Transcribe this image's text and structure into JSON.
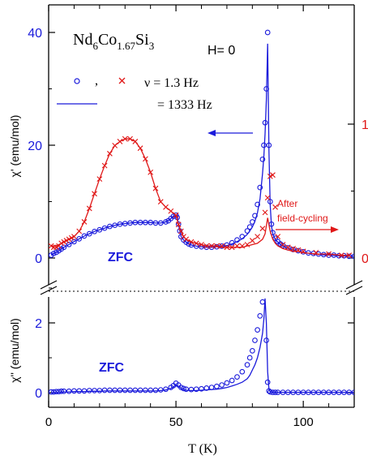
{
  "colors": {
    "blue": "#1a1adb",
    "red": "#e01818",
    "axis": "#000000"
  },
  "labels": {
    "compound": {
      "base": "Nd",
      "sub1": "6",
      "mid1": "Co",
      "sub2": "1.67",
      "mid2": "Si",
      "sub3": "3"
    },
    "field": "H= 0",
    "freq_low": "ν = 1.3 Hz",
    "freq_high": "= 1333 Hz",
    "comma": ",",
    "after_line1": "After",
    "after_line2": "field-cycling",
    "zfc_top": "ZFC",
    "zfc_bottom": "ZFC"
  },
  "chart_data": [
    {
      "type": "scatter",
      "panel": "top",
      "ylabel": "χ' (emu/mol)",
      "xlim": [
        0,
        120
      ],
      "ylim": [
        0,
        42
      ],
      "yticks": [
        0,
        20,
        40
      ],
      "y2ticks": [
        0,
        1
      ],
      "y2_color": "red",
      "series": [
        {
          "name": "ν = 1.3 Hz",
          "style": "open-circle",
          "color": "blue",
          "x": [
            1,
            2,
            3,
            4,
            5,
            6,
            8,
            10,
            12,
            14,
            16,
            18,
            20,
            22,
            24,
            26,
            28,
            30,
            32,
            34,
            36,
            38,
            40,
            42,
            44,
            46,
            47,
            48,
            49,
            50,
            50.5,
            51,
            51.5,
            52,
            53,
            54,
            55,
            56,
            58,
            60,
            62,
            64,
            66,
            68,
            70,
            72,
            74,
            76,
            78,
            79,
            80,
            81,
            82,
            83,
            84,
            84.5,
            85,
            85.5,
            86,
            86.5,
            87,
            87.5,
            88,
            89,
            90,
            91,
            92,
            94,
            96,
            98,
            100,
            102,
            104,
            106,
            108,
            110,
            112,
            114,
            116,
            118,
            120
          ],
          "y": [
            0.5,
            0.8,
            1.0,
            1.3,
            1.6,
            1.9,
            2.4,
            2.9,
            3.4,
            3.9,
            4.3,
            4.7,
            5.0,
            5.3,
            5.6,
            5.8,
            6.0,
            6.1,
            6.2,
            6.3,
            6.3,
            6.3,
            6.3,
            6.2,
            6.2,
            6.4,
            6.6,
            7.0,
            7.4,
            7.6,
            7.2,
            6.0,
            4.8,
            3.8,
            3.2,
            2.8,
            2.5,
            2.3,
            2.1,
            2.0,
            1.9,
            1.9,
            2.0,
            2.1,
            2.3,
            2.7,
            3.2,
            3.8,
            4.8,
            5.5,
            6.4,
            7.5,
            9.5,
            12.5,
            17.5,
            20,
            24,
            30,
            40,
            20,
            10,
            6,
            4.5,
            3.5,
            2.9,
            2.5,
            2.2,
            1.8,
            1.5,
            1.3,
            1.1,
            0.9,
            0.8,
            0.7,
            0.6,
            0.5,
            0.5,
            0.4,
            0.4,
            0.3,
            0.3
          ]
        },
        {
          "name": "1333 Hz",
          "style": "line",
          "color": "blue",
          "x": [
            1,
            2,
            3,
            4,
            5,
            6,
            8,
            10,
            12,
            14,
            16,
            18,
            20,
            22,
            24,
            26,
            28,
            30,
            32,
            34,
            36,
            38,
            40,
            42,
            44,
            46,
            47,
            48,
            49,
            50,
            50.5,
            51,
            51.5,
            52,
            53,
            54,
            55,
            56,
            58,
            60,
            62,
            64,
            66,
            68,
            70,
            72,
            74,
            76,
            78,
            79,
            80,
            81,
            82,
            83,
            84,
            84.5,
            85,
            85.5,
            86,
            86.5,
            87,
            87.5,
            88,
            89,
            90,
            91,
            92,
            94,
            96,
            98,
            100,
            102,
            104,
            106,
            108,
            110,
            112,
            114,
            116,
            118,
            120
          ],
          "y": [
            0.5,
            0.8,
            1.0,
            1.3,
            1.6,
            1.9,
            2.4,
            2.9,
            3.4,
            3.9,
            4.3,
            4.7,
            5.0,
            5.3,
            5.6,
            5.8,
            6.0,
            6.1,
            6.2,
            6.3,
            6.3,
            6.3,
            6.3,
            6.2,
            6.2,
            6.4,
            6.6,
            7.0,
            7.4,
            7.6,
            7.2,
            6.0,
            4.8,
            3.8,
            3.2,
            2.8,
            2.5,
            2.3,
            2.1,
            2.0,
            1.9,
            1.9,
            2.0,
            2.1,
            2.2,
            2.5,
            2.9,
            3.4,
            4.2,
            4.8,
            5.5,
            6.5,
            8.0,
            10.5,
            15,
            18,
            22,
            28,
            38,
            19,
            9.5,
            5.7,
            4.3,
            3.3,
            2.8,
            2.4,
            2.1,
            1.7,
            1.4,
            1.2,
            1.0,
            0.85,
            0.75,
            0.65,
            0.55,
            0.5,
            0.45,
            0.4,
            0.35,
            0.3,
            0.3
          ]
        },
        {
          "name": "ν = 1.3 Hz",
          "style": "cross",
          "color": "red",
          "axis": "right",
          "x": [
            1,
            2,
            3,
            4,
            5,
            6,
            7,
            8,
            9,
            10,
            12,
            14,
            16,
            18,
            20,
            22,
            24,
            26,
            28,
            30,
            32,
            34,
            36,
            38,
            40,
            42,
            44,
            46,
            48,
            50,
            51,
            52,
            53,
            54,
            56,
            58,
            60,
            62,
            64,
            66,
            68,
            70,
            72,
            74,
            76,
            78,
            80,
            82,
            84,
            85,
            86,
            87,
            88,
            89,
            90,
            92,
            94,
            96,
            98,
            100,
            105,
            110,
            115,
            118
          ],
          "y": [
            0.09,
            0.08,
            0.08,
            0.09,
            0.11,
            0.12,
            0.13,
            0.14,
            0.15,
            0.16,
            0.2,
            0.27,
            0.37,
            0.48,
            0.59,
            0.69,
            0.78,
            0.84,
            0.87,
            0.89,
            0.89,
            0.87,
            0.82,
            0.74,
            0.64,
            0.52,
            0.42,
            0.38,
            0.35,
            0.32,
            0.25,
            0.2,
            0.16,
            0.14,
            0.12,
            0.11,
            0.1,
            0.09,
            0.09,
            0.09,
            0.09,
            0.08,
            0.08,
            0.09,
            0.09,
            0.1,
            0.13,
            0.16,
            0.22,
            0.34,
            0.45,
            0.61,
            0.62,
            0.38,
            0.16,
            0.1,
            0.08,
            0.07,
            0.06,
            0.05,
            0.04,
            0.03,
            0.02,
            0.02
          ]
        },
        {
          "name": "1333 Hz",
          "style": "line",
          "color": "red",
          "axis": "right",
          "x": [
            1,
            2,
            3,
            4,
            5,
            6,
            8,
            10,
            12,
            14,
            16,
            18,
            20,
            22,
            24,
            26,
            28,
            30,
            32,
            34,
            36,
            38,
            40,
            42,
            44,
            46,
            48,
            50,
            51,
            52,
            53,
            54,
            56,
            58,
            60,
            62,
            64,
            66,
            68,
            70,
            72,
            74,
            76,
            78,
            80,
            82,
            84,
            85,
            86,
            87,
            88,
            89,
            90,
            92,
            94,
            96,
            98,
            100,
            105,
            110,
            115,
            118
          ],
          "y": [
            0.09,
            0.09,
            0.09,
            0.1,
            0.11,
            0.12,
            0.14,
            0.16,
            0.2,
            0.27,
            0.37,
            0.48,
            0.59,
            0.69,
            0.78,
            0.84,
            0.87,
            0.89,
            0.89,
            0.87,
            0.82,
            0.74,
            0.64,
            0.52,
            0.42,
            0.38,
            0.35,
            0.32,
            0.25,
            0.2,
            0.16,
            0.14,
            0.12,
            0.11,
            0.1,
            0.09,
            0.09,
            0.09,
            0.08,
            0.08,
            0.08,
            0.08,
            0.08,
            0.09,
            0.1,
            0.11,
            0.14,
            0.18,
            0.3,
            0.2,
            0.14,
            0.11,
            0.09,
            0.07,
            0.06,
            0.05,
            0.05,
            0.04,
            0.03,
            0.03,
            0.02,
            0.02
          ]
        }
      ]
    },
    {
      "type": "scatter",
      "panel": "bottom",
      "xlabel": "T (K)",
      "ylabel": "χ'' (emu/mol)",
      "xlim": [
        0,
        120
      ],
      "ylim": [
        -0.3,
        3.6
      ],
      "xticks": [
        0,
        50,
        100
      ],
      "yticks": [
        0,
        2
      ],
      "series": [
        {
          "name": "ν = 1.3 Hz",
          "style": "open-circle",
          "color": "blue",
          "x": [
            1,
            2,
            3,
            4,
            5,
            6,
            8,
            10,
            12,
            14,
            16,
            18,
            20,
            22,
            24,
            26,
            28,
            30,
            32,
            34,
            36,
            38,
            40,
            42,
            44,
            46,
            48,
            49,
            50,
            51,
            52,
            53,
            54,
            56,
            58,
            60,
            62,
            64,
            66,
            68,
            70,
            72,
            74,
            76,
            78,
            79,
            80,
            81,
            82,
            83,
            84,
            84.5,
            85,
            85.5,
            86,
            86.5,
            87,
            88,
            89,
            90,
            92,
            94,
            96,
            98,
            100,
            102,
            104,
            106,
            108,
            110,
            112,
            114,
            116,
            118,
            120
          ],
          "y": [
            0.02,
            0.02,
            0.03,
            0.03,
            0.04,
            0.04,
            0.04,
            0.05,
            0.05,
            0.05,
            0.06,
            0.06,
            0.06,
            0.07,
            0.07,
            0.07,
            0.07,
            0.07,
            0.07,
            0.07,
            0.07,
            0.07,
            0.07,
            0.07,
            0.08,
            0.1,
            0.15,
            0.2,
            0.27,
            0.22,
            0.15,
            0.12,
            0.1,
            0.09,
            0.1,
            0.11,
            0.13,
            0.15,
            0.18,
            0.22,
            0.28,
            0.35,
            0.45,
            0.6,
            0.8,
            1.0,
            1.2,
            1.5,
            1.8,
            2.2,
            2.6,
            2.95,
            3.15,
            1.5,
            0.3,
            0.05,
            0.02,
            0.01,
            0.01,
            0.01,
            0.01,
            0.01,
            0.01,
            0.01,
            0.01,
            0.01,
            0.01,
            0.01,
            0.01,
            0.01,
            0.01,
            0.01,
            0.01,
            0.01,
            0.01
          ]
        },
        {
          "name": "1333 Hz",
          "style": "line",
          "color": "blue",
          "x": [
            1,
            2,
            3,
            4,
            5,
            6,
            8,
            10,
            12,
            14,
            16,
            18,
            20,
            22,
            24,
            26,
            28,
            30,
            32,
            34,
            36,
            38,
            40,
            42,
            44,
            46,
            48,
            49,
            50,
            51,
            52,
            53,
            54,
            56,
            58,
            60,
            62,
            64,
            66,
            68,
            70,
            72,
            74,
            76,
            78,
            79,
            80,
            81,
            82,
            83,
            84,
            84.5,
            85,
            85.5,
            86,
            86.5,
            87,
            88,
            89,
            90,
            92,
            94,
            96,
            98,
            100,
            102,
            104,
            106,
            108,
            110,
            112,
            114,
            116,
            118,
            120
          ],
          "y": [
            0.0,
            0.0,
            0.01,
            0.01,
            0.02,
            0.02,
            0.02,
            0.03,
            0.03,
            0.03,
            0.04,
            0.04,
            0.04,
            0.05,
            0.05,
            0.05,
            0.05,
            0.05,
            0.05,
            0.05,
            0.05,
            0.05,
            0.05,
            0.05,
            0.06,
            0.08,
            0.12,
            0.16,
            0.22,
            0.18,
            0.12,
            0.09,
            0.07,
            0.06,
            0.06,
            0.07,
            0.08,
            0.09,
            0.1,
            0.12,
            0.15,
            0.19,
            0.24,
            0.3,
            0.4,
            0.5,
            0.65,
            0.8,
            1.0,
            1.3,
            1.7,
            2.1,
            2.7,
            2.0,
            0.6,
            0.1,
            0.02,
            0.01,
            0.01,
            0.01,
            0.01,
            0.01,
            0.01,
            0.01,
            0.01,
            0.01,
            0.01,
            0.01,
            0.01,
            0.01,
            0.01,
            0.01,
            0.01,
            0.01,
            0.01
          ]
        }
      ]
    }
  ]
}
